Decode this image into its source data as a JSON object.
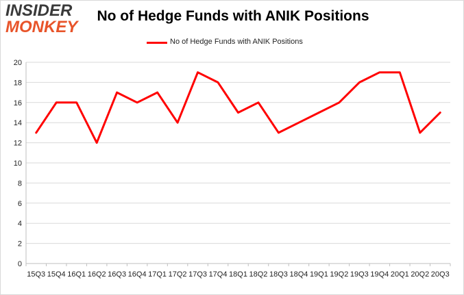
{
  "logo": {
    "line1": "INSIDER",
    "line2": "MONKEY"
  },
  "colors": {
    "series": "#ff0000",
    "grid": "#d9d9d9",
    "logo_accent": "#e8542a"
  },
  "chart_data": {
    "type": "line",
    "title": "No of Hedge Funds with ANIK Positions",
    "xlabel": "",
    "ylabel": "",
    "ylim": [
      0,
      20
    ],
    "yticks": [
      0,
      2,
      4,
      6,
      8,
      10,
      12,
      14,
      16,
      18,
      20
    ],
    "grid": true,
    "legend_position": "top-center",
    "categories": [
      "15Q3",
      "15Q4",
      "16Q1",
      "16Q2",
      "16Q3",
      "16Q4",
      "17Q1",
      "17Q2",
      "17Q3",
      "17Q4",
      "18Q1",
      "18Q2",
      "18Q3",
      "18Q4",
      "19Q1",
      "19Q2",
      "19Q3",
      "19Q4",
      "20Q1",
      "20Q2",
      "20Q3"
    ],
    "series": [
      {
        "name": "No of Hedge Funds with ANIK Positions",
        "values": [
          13,
          16,
          16,
          12,
          17,
          16,
          17,
          14,
          19,
          18,
          15,
          16,
          13,
          14,
          15,
          16,
          18,
          19,
          19,
          13,
          15
        ]
      }
    ]
  }
}
